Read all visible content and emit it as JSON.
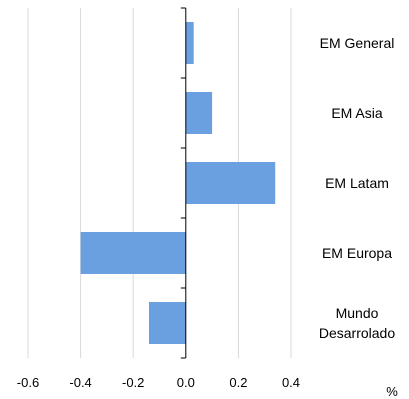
{
  "chart_data": {
    "type": "bar",
    "orientation": "horizontal",
    "categories": [
      [
        "EM General"
      ],
      [
        "EM Asia"
      ],
      [
        "EM Latam"
      ],
      [
        "EM Europa"
      ],
      [
        "Mundo",
        "Desarrolado"
      ]
    ],
    "values": [
      0.03,
      0.1,
      0.34,
      -0.4,
      -0.14
    ],
    "xlim": [
      -0.6,
      0.4
    ],
    "xticks": [
      "-0.6",
      "-0.4",
      "-0.2",
      "0.0",
      "0.2",
      "0.4"
    ],
    "xunit": "%",
    "grid": "vertical",
    "bar_color": "#6aa0e0",
    "grid_color": "#d9d9d9"
  }
}
